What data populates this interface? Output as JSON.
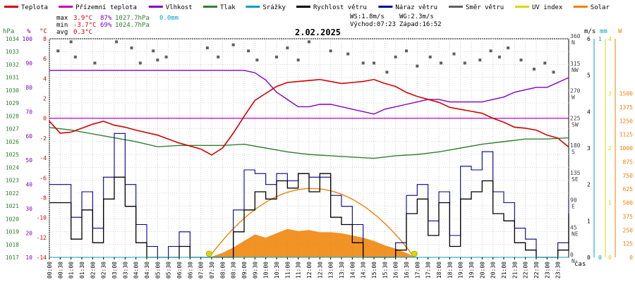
{
  "legend": [
    {
      "label": "Teplota",
      "color": "#d40000"
    },
    {
      "label": "Přízemní teplota",
      "color": "#c000c0"
    },
    {
      "label": "Vlhkost",
      "color": "#8000c0"
    },
    {
      "label": "Tlak",
      "color": "#308030"
    },
    {
      "label": "Srážky",
      "color": "#00a0c0"
    },
    {
      "label": "Rychlost větru",
      "color": "#000000"
    },
    {
      "label": "Náraz větru",
      "color": "#000090"
    },
    {
      "label": "Směr větru",
      "color": "#606060"
    },
    {
      "label": "UV index",
      "color": "#d8d800"
    },
    {
      "label": "Solar",
      "color": "#f08000"
    }
  ],
  "stats": {
    "max_label": "max",
    "max_temp": "3.9°C",
    "max_hum": "87%",
    "max_press": "1027.7hPa",
    "precip": "0.0mm",
    "min_label": "min",
    "min_temp": "-3.7°C",
    "min_hum": "69%",
    "min_press": "1024.7hPa",
    "avg_label": "avg",
    "avg_temp": "0.3°C"
  },
  "wind_stats": {
    "ws": "WS:1.8m/s",
    "wg": "WG:2.3m/s",
    "sunrise": "Východ:07:23",
    "sunset": "Západ:16:52"
  },
  "date": "2.02.2025",
  "axis_units": {
    "hpa": "hPa",
    "pct": "%",
    "degc": "°C",
    "ms": "m/s",
    "mm": "mm",
    "w": "W",
    "time": "čas"
  },
  "colors": {
    "temp": "#d40000",
    "ground": "#c000c0",
    "hum": "#8000c0",
    "press": "#308030",
    "rain": "#00a0c0",
    "wind": "#000000",
    "gust": "#000090",
    "dir": "#606060",
    "uv": "#d8d800",
    "solar": "#f08000"
  },
  "chart_data": {
    "type": "line",
    "title": "2.02.2025",
    "x_ticks": [
      "00:00",
      "00:30",
      "01:00",
      "01:30",
      "02:00",
      "02:30",
      "03:00",
      "03:30",
      "04:00",
      "04:30",
      "05:00",
      "05:30",
      "06:00",
      "06:30",
      "07:00",
      "07:30",
      "08:00",
      "08:30",
      "09:00",
      "09:30",
      "10:00",
      "10:30",
      "11:00",
      "11:30",
      "12:00",
      "12:30",
      "13:00",
      "13:30",
      "14:00",
      "14:30",
      "15:00",
      "15:30",
      "16:00",
      "16:30",
      "17:00",
      "17:30",
      "18:00",
      "18:30",
      "19:00",
      "19:30",
      "20:00",
      "20:30",
      "21:00",
      "21:30",
      "22:00",
      "22:30",
      "23:00",
      "23:30"
    ],
    "axes": {
      "pressure_hpa": {
        "ticks": [
          1017,
          1018,
          1019,
          1020,
          1021,
          1022,
          1023,
          1024,
          1025,
          1026,
          1027,
          1028,
          1029,
          1030,
          1031,
          1032,
          1033,
          1034
        ],
        "range": [
          1017,
          1034
        ]
      },
      "humidity_pct": {
        "ticks": [
          10,
          20,
          30,
          40,
          50,
          60,
          70,
          80,
          90,
          100
        ],
        "range": [
          10,
          100
        ]
      },
      "temperature_c": {
        "ticks": [
          -14,
          -12,
          -10,
          -8,
          -6,
          -4,
          -2,
          0,
          2,
          4,
          6,
          8
        ],
        "range": [
          -14,
          8
        ]
      },
      "wind_dir": {
        "ticks": [
          {
            "deg": "0",
            "dir": "N"
          },
          {
            "deg": "45",
            "dir": "NE"
          },
          {
            "deg": "90",
            "dir": "E"
          },
          {
            "deg": "135",
            "dir": "SE"
          },
          {
            "deg": "180",
            "dir": "S"
          },
          {
            "deg": "225",
            "dir": "SW"
          },
          {
            "deg": "270",
            "dir": "W"
          },
          {
            "deg": "315",
            "dir": "NW"
          },
          {
            "deg": "360",
            "dir": "N"
          }
        ],
        "range": [
          0,
          360
        ]
      },
      "wind_ms": {
        "ticks": [
          0,
          1,
          2,
          3,
          4,
          5,
          6
        ],
        "range": [
          0,
          6
        ]
      },
      "rain_mm": {
        "ticks": [
          0,
          1
        ],
        "range": [
          0,
          1
        ]
      },
      "uv": {
        "ticks": [
          0,
          1,
          2,
          3,
          4
        ],
        "range": [
          0,
          4
        ]
      },
      "solar_w": {
        "ticks": [
          0,
          125,
          250,
          375,
          500,
          625,
          750,
          875,
          1000,
          1125,
          1250,
          1375,
          1500
        ],
        "range": [
          0,
          2000
        ]
      }
    },
    "series": [
      {
        "name": "Teplota",
        "axis": "temperature_c",
        "x": [
          0,
          0.5,
          1,
          2,
          2.5,
          3,
          3.5,
          4,
          5,
          6,
          7,
          7.5,
          8,
          8.5,
          9,
          9.5,
          10,
          10.5,
          11,
          11.5,
          12,
          12.5,
          13,
          13.5,
          14,
          14.5,
          15,
          15.5,
          16,
          16.5,
          17,
          17.5,
          18,
          18.5,
          19,
          19.5,
          20,
          20.5,
          21,
          21.5,
          22,
          22.5,
          23,
          23.5,
          24
        ],
        "values": [
          -0.3,
          -1.5,
          -1.4,
          -0.6,
          -0.3,
          -0.7,
          -0.9,
          -1.2,
          -1.7,
          -2.5,
          -3.1,
          -3.7,
          -3.0,
          -1.5,
          0.2,
          1.8,
          2.5,
          3.2,
          3.6,
          3.7,
          3.8,
          3.9,
          3.7,
          3.5,
          3.6,
          3.7,
          3.9,
          3.5,
          3.2,
          2.6,
          2.2,
          1.9,
          1.6,
          1.1,
          0.9,
          0.7,
          0.5,
          0.0,
          -0.4,
          -0.9,
          -1.0,
          -1.2,
          -1.7,
          -2.0,
          -2.9
        ]
      },
      {
        "name": "Přízemní teplota",
        "axis": "temperature_c",
        "x": [
          0,
          24
        ],
        "values": [
          0,
          0
        ]
      },
      {
        "name": "Vlhkost",
        "axis": "humidity_pct",
        "x": [
          0,
          1,
          2,
          3,
          4,
          5,
          6,
          7,
          8,
          9,
          9.5,
          10,
          10.5,
          11,
          11.5,
          12,
          12.5,
          13,
          13.5,
          14,
          14.5,
          15,
          15.5,
          16,
          16.5,
          17,
          17.5,
          18,
          18.5,
          19,
          19.5,
          20,
          20.5,
          21,
          21.5,
          22,
          22.5,
          23,
          23.5,
          24
        ],
        "values": [
          87,
          87,
          87,
          87,
          87,
          87,
          87,
          87,
          87,
          87,
          86,
          83,
          78,
          75,
          72,
          72,
          73,
          73,
          72,
          71,
          70,
          69,
          71,
          72,
          73,
          74,
          75,
          75,
          74,
          74,
          74,
          74,
          75,
          76,
          78,
          79,
          80,
          80,
          82,
          84
        ]
      },
      {
        "name": "Tlak",
        "axis": "pressure_hpa",
        "x": [
          0,
          1,
          2,
          3,
          4,
          5,
          6,
          7,
          8,
          9,
          10,
          11,
          12,
          13,
          14,
          15,
          16,
          17,
          18,
          19,
          20,
          21,
          22,
          23,
          24
        ],
        "values": [
          1027.1,
          1026.9,
          1026.6,
          1026.3,
          1026.0,
          1025.6,
          1025.7,
          1025.7,
          1025.7,
          1025.8,
          1025.5,
          1025.2,
          1025.0,
          1024.9,
          1024.8,
          1024.7,
          1024.9,
          1025.0,
          1025.2,
          1025.5,
          1025.8,
          1026.0,
          1026.2,
          1026.2,
          1026.3
        ]
      },
      {
        "name": "Srážky",
        "axis": "rain_mm",
        "x": [
          0,
          24
        ],
        "values": [
          0,
          0
        ]
      },
      {
        "name": "Rychlost větru",
        "axis": "wind_ms",
        "x": [
          0,
          1,
          1.5,
          2,
          2.5,
          3,
          3.5,
          4,
          4.5,
          5,
          5.5,
          6,
          6.5,
          7,
          7.5,
          8,
          8.5,
          9,
          9.5,
          10,
          10.5,
          11,
          11.5,
          12,
          12.5,
          13,
          13.5,
          14,
          14.5,
          15,
          15.5,
          16,
          16.5,
          17,
          17.5,
          18,
          18.5,
          19,
          19.5,
          20,
          20.5,
          21,
          21.5,
          22,
          22.5,
          23,
          23.5,
          24
        ],
        "values": [
          1.5,
          0.5,
          1.3,
          0.4,
          1.6,
          2.2,
          1.4,
          0.4,
          0.0,
          0.0,
          0.0,
          0.3,
          0.0,
          0.0,
          0.0,
          0.0,
          0.7,
          1.3,
          1.8,
          1.6,
          2.1,
          1.9,
          2.3,
          1.8,
          2.3,
          1.1,
          0.9,
          0.4,
          0.0,
          0.0,
          0.0,
          0.2,
          1.2,
          1.6,
          0.6,
          1.5,
          0.3,
          1.6,
          1.8,
          2.1,
          1.2,
          1.0,
          0.4,
          0.2,
          0.0,
          0.0,
          0.2,
          1.2
        ]
      },
      {
        "name": "Náraz větru",
        "axis": "wind_ms",
        "x": [
          0,
          1,
          1.5,
          2,
          2.5,
          3,
          3.5,
          4,
          4.5,
          5,
          5.5,
          6,
          6.5,
          7,
          7.5,
          8,
          8.5,
          9,
          9.5,
          10,
          10.5,
          11,
          11.5,
          12,
          12.5,
          13,
          13.5,
          14,
          14.5,
          15,
          15.5,
          16,
          16.5,
          17,
          17.5,
          18,
          18.5,
          19,
          19.5,
          20,
          20.5,
          21,
          21.5,
          22,
          22.5,
          23,
          23.5,
          24
        ],
        "values": [
          2.0,
          1.1,
          1.8,
          0.8,
          2.2,
          3.4,
          2.0,
          0.9,
          0.3,
          0.0,
          0.3,
          0.7,
          0.0,
          0.0,
          0.0,
          0.0,
          1.3,
          2.4,
          2.3,
          2.0,
          2.3,
          2.1,
          2.3,
          2.2,
          2.2,
          1.7,
          1.4,
          0.9,
          0.0,
          0.0,
          0.0,
          0.4,
          1.7,
          2.0,
          1.0,
          1.8,
          0.6,
          2.5,
          2.4,
          2.9,
          1.8,
          1.5,
          0.8,
          0.5,
          0.0,
          0.0,
          0.4,
          1.6
        ]
      },
      {
        "name": "Solar",
        "axis": "solar_w",
        "x": [
          7.4,
          8,
          8.5,
          9,
          9.5,
          10,
          10.5,
          11,
          11.5,
          12,
          12.5,
          13,
          13.5,
          14,
          14.5,
          15,
          15.5,
          16,
          16.5,
          16.9
        ],
        "values": [
          0,
          40,
          90,
          150,
          210,
          180,
          220,
          260,
          240,
          250,
          230,
          230,
          220,
          200,
          180,
          150,
          110,
          80,
          40,
          0
        ]
      }
    ],
    "scatter": {
      "name": "Směr větru",
      "axis": "wind_dir",
      "x": [
        0.4,
        1.0,
        1.2,
        2.1,
        3.1,
        3.8,
        4.2,
        4.8,
        5.0,
        5.4,
        7.3,
        7.8,
        8.5,
        9.2,
        9.6,
        10.5,
        11.0,
        11.5,
        12.0,
        13.0,
        13.8,
        14.5,
        15.0,
        15.6,
        16.0,
        16.5,
        17.0,
        17.6,
        18.1,
        18.7,
        19.2,
        19.9,
        20.4,
        20.8,
        21.2,
        21.8,
        22.4,
        22.9,
        23.3
      ],
      "values": [
        340,
        355,
        330,
        320,
        355,
        345,
        320,
        340,
        325,
        330,
        345,
        330,
        350,
        340,
        325,
        330,
        345,
        325,
        355,
        340,
        335,
        320,
        320,
        305,
        330,
        340,
        315,
        330,
        320,
        335,
        320,
        325,
        340,
        330,
        345,
        325,
        310,
        320,
        305
      ]
    },
    "sun": {
      "sunrise": "07:23",
      "sunset": "16:52"
    }
  }
}
